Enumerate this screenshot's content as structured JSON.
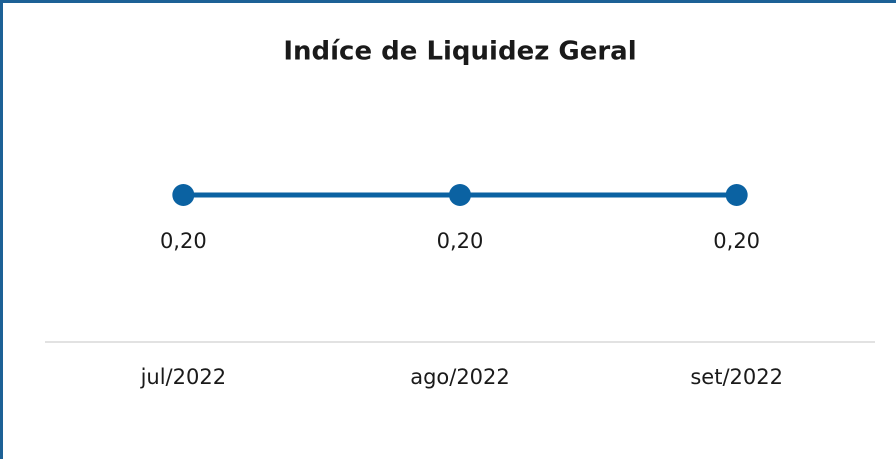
{
  "chart_data": {
    "type": "line",
    "title": "Indíce de Liquidez Geral",
    "categories": [
      "jul/2022",
      "ago/2022",
      "set/2022"
    ],
    "series": [
      {
        "name": "Indíce de Liquidez Geral",
        "color": "#0b62a2",
        "values": [
          0.2,
          0.2,
          0.2
        ],
        "value_labels": [
          "0,20",
          "0,20",
          "0,20"
        ]
      }
    ]
  }
}
